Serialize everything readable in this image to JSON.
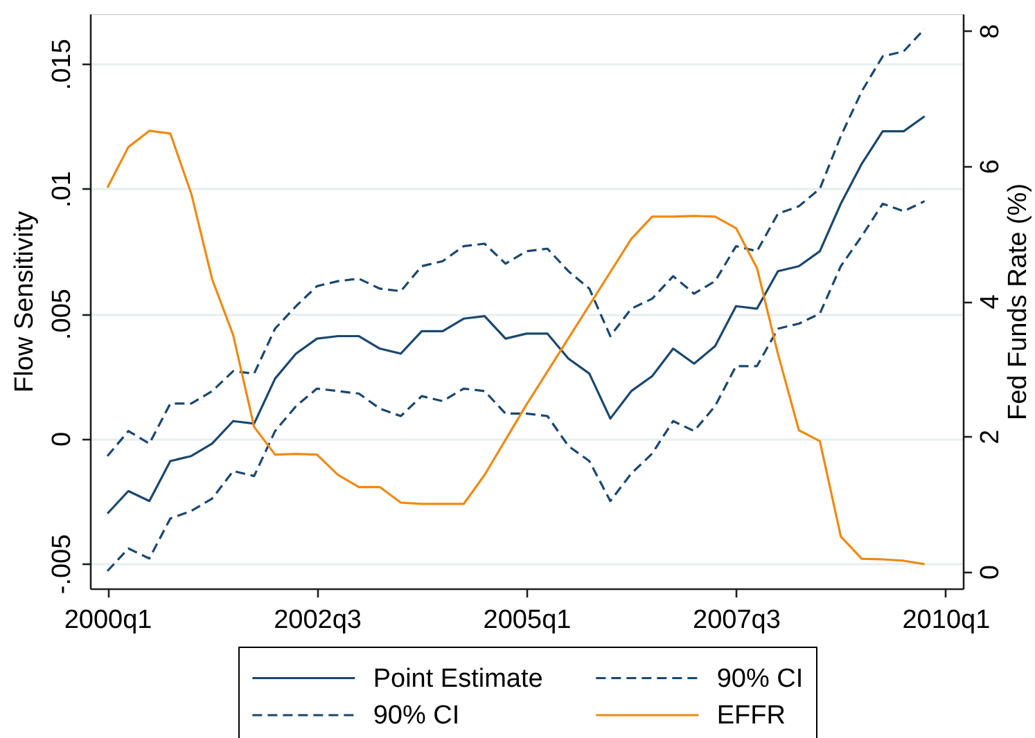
{
  "chart_data": {
    "type": "line",
    "ylabel": "Flow Sensitivity",
    "y2label": "Fed Funds Rate (%)",
    "categories": [
      "2000q1",
      null,
      null,
      null,
      null,
      null,
      null,
      null,
      null,
      null,
      "2002q3",
      null,
      null,
      null,
      null,
      null,
      null,
      null,
      null,
      null,
      "2005q1",
      null,
      null,
      null,
      null,
      null,
      null,
      null,
      null,
      null,
      "2007q3",
      null,
      null,
      null,
      null,
      null,
      null,
      null,
      null,
      null,
      "2010q1"
    ],
    "ylim": [
      -0.006,
      0.017
    ],
    "yticks": [
      {
        "value": -0.005,
        "label": "-.005"
      },
      0,
      {
        "value": 0.005,
        "label": ".005"
      },
      {
        "value": 0.01,
        "label": ".01"
      },
      {
        "value": 0.015,
        "label": ".015"
      }
    ],
    "y2lim": [
      -0.25,
      8.25
    ],
    "y2ticks": [
      0,
      2,
      4,
      6,
      8
    ],
    "series": [
      {
        "name": "Point Estimate",
        "color": "#1a476f",
        "line_style": "solid",
        "values": [
          -0.003,
          -0.0021,
          -0.0025,
          -0.0009,
          -0.0007,
          -0.0002,
          0.0007,
          0.0006,
          0.0024,
          0.0034,
          0.004,
          0.0041,
          0.0041,
          0.0036,
          0.0034,
          0.0043,
          0.0043,
          0.0048,
          0.0049,
          0.004,
          0.0042,
          0.0042,
          0.0032,
          0.0026,
          0.0008,
          0.0019,
          0.0025,
          0.0036,
          0.003,
          0.0037,
          0.0053,
          0.0052,
          0.0067,
          0.0069,
          0.0075,
          0.0094,
          0.011,
          0.0123,
          0.0123,
          0.0129,
          null
        ]
      },
      {
        "name": "90% CI",
        "color": "#1a476f",
        "line_style": "dashed",
        "values": [
          -0.0007,
          0.0003,
          -0.0002,
          0.0014,
          0.0014,
          0.0019,
          0.0027,
          0.0026,
          0.0044,
          0.0053,
          0.0061,
          0.0063,
          0.0064,
          0.006,
          0.0059,
          0.0069,
          0.0071,
          0.0077,
          0.0078,
          0.007,
          0.0075,
          0.0076,
          0.0067,
          0.006,
          0.0041,
          0.0052,
          0.0056,
          0.0065,
          0.0058,
          0.0063,
          0.0077,
          0.0075,
          0.009,
          0.0093,
          0.01,
          0.0121,
          0.0139,
          0.0153,
          0.0155,
          0.0164,
          null
        ]
      },
      {
        "name": "90% CI",
        "color": "#1a476f",
        "line_style": "dashed",
        "values": [
          -0.0053,
          -0.0044,
          -0.0048,
          -0.0032,
          -0.0029,
          -0.0024,
          -0.0013,
          -0.0015,
          0.0003,
          0.0013,
          0.002,
          0.0019,
          0.0018,
          0.0012,
          0.0009,
          0.0017,
          0.0015,
          0.002,
          0.0019,
          0.001,
          0.001,
          0.0009,
          -0.0003,
          -0.0009,
          -0.0025,
          -0.0014,
          -0.0006,
          0.0007,
          0.0003,
          0.0013,
          0.0029,
          0.0029,
          0.0044,
          0.0046,
          0.005,
          0.0069,
          0.0081,
          0.0094,
          0.0091,
          0.0095,
          null
        ]
      },
      {
        "name": "EFFR",
        "color": "#ee8a12",
        "line_style": "solid",
        "axis": "y2",
        "values": [
          5.68,
          6.28,
          6.52,
          6.48,
          5.59,
          4.32,
          3.5,
          2.14,
          1.73,
          1.74,
          1.73,
          1.43,
          1.25,
          1.25,
          1.02,
          1.0,
          1.0,
          1.0,
          1.43,
          1.95,
          2.47,
          2.96,
          3.45,
          3.94,
          4.43,
          4.92,
          5.25,
          5.25,
          5.26,
          5.25,
          5.08,
          4.49,
          3.22,
          2.09,
          1.93,
          0.52,
          0.19,
          0.18,
          0.16,
          0.11,
          null
        ]
      }
    ],
    "grid": "y",
    "legend": "bottom"
  }
}
